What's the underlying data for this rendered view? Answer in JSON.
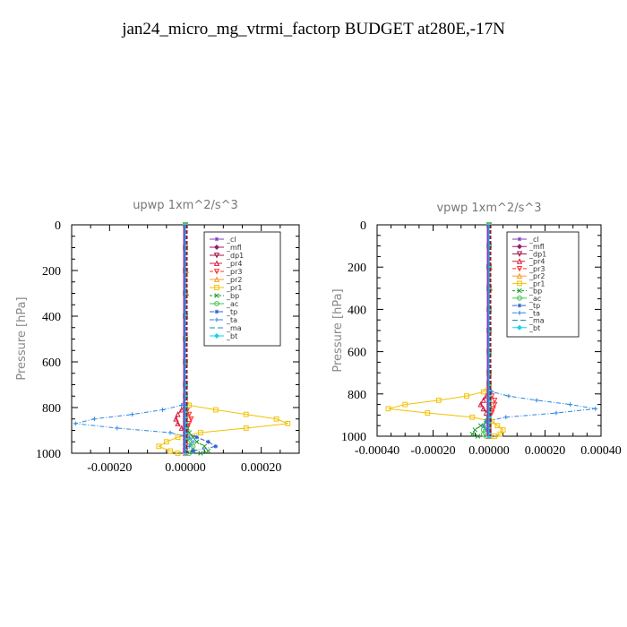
{
  "figure": {
    "title": "jan24_micro_mg_vtrmi_factorp  BUDGET at280E,-17N"
  },
  "chart_data": [
    {
      "type": "line",
      "title": "upwp   1xm^2/s^3",
      "xlabel": "",
      "ylabel": "Pressure [hPa]",
      "xlim": [
        -0.0003,
        0.0003
      ],
      "ylim": [
        1000,
        0
      ],
      "xticks": [
        -0.0002,
        0.0,
        0.0002
      ],
      "xtick_labels": [
        "-0.00020",
        "0.00000",
        "0.00020"
      ],
      "yticks": [
        0,
        200,
        400,
        600,
        800,
        1000
      ],
      "yticks_labels": [
        "0",
        "200",
        "400",
        "600",
        "800",
        "1000"
      ],
      "legend_position": "top-right",
      "pressure": [
        0,
        100,
        200,
        300,
        400,
        500,
        600,
        700,
        750,
        790,
        810,
        830,
        850,
        870,
        890,
        910,
        930,
        950,
        970,
        990,
        1000
      ],
      "series": [
        {
          "name": "_cl",
          "color": "#7f3fbf",
          "values": [
            0,
            0,
            0,
            0,
            0,
            0,
            0,
            0,
            0,
            0,
            0,
            0,
            0,
            0,
            0,
            0,
            0,
            0,
            0,
            0,
            0
          ]
        },
        {
          "name": "_mfl",
          "color": "#9b1b6b",
          "values": [
            0,
            0,
            0,
            0,
            0,
            0,
            0,
            0,
            0,
            0,
            0,
            0,
            0,
            0,
            0,
            0,
            0,
            0,
            0,
            0,
            0
          ]
        },
        {
          "name": "_dp1",
          "color": "#a0144a",
          "values": [
            0,
            0,
            0,
            0,
            0,
            0,
            0,
            0,
            0,
            0,
            0,
            0,
            0,
            0,
            0,
            0,
            0,
            0,
            0,
            0,
            0
          ]
        },
        {
          "name": "_pr4",
          "color": "#d81b3c",
          "values": [
            0,
            0,
            0,
            0,
            0,
            0,
            0,
            0,
            0,
            0,
            -1e-05,
            -2e-05,
            -2.5e-05,
            -2e-05,
            -1e-05,
            0,
            0,
            0,
            0,
            0,
            0
          ]
        },
        {
          "name": "_pr3",
          "color": "#ff3030",
          "values": [
            0,
            0,
            0,
            0,
            0,
            0,
            0,
            0,
            0,
            0,
            5e-06,
            1e-05,
            1.5e-05,
            1e-05,
            5e-06,
            0,
            0,
            0,
            0,
            0,
            0
          ]
        },
        {
          "name": "_pr2",
          "color": "#ff9a2f",
          "values": [
            0,
            0,
            2e-06,
            3e-06,
            0,
            0,
            0,
            0,
            0,
            0,
            0,
            0,
            0,
            0,
            0,
            0,
            0,
            0,
            0,
            0,
            0
          ]
        },
        {
          "name": "_pr1",
          "color": "#f2c200",
          "values": [
            0,
            0,
            0,
            0,
            0,
            0,
            0,
            0,
            0,
            1e-05,
            8e-05,
            0.00016,
            0.00024,
            0.00027,
            0.00016,
            4e-05,
            -2e-05,
            -5e-05,
            -7e-05,
            -4e-05,
            -2e-05
          ]
        },
        {
          "name": "_bp",
          "color": "#1a9e2a",
          "values": [
            0,
            0,
            0,
            0,
            0,
            0,
            0,
            0,
            0,
            0,
            0,
            0,
            0,
            0,
            5e-06,
            1e-05,
            2e-05,
            3e-05,
            5e-05,
            6e-05,
            4e-05
          ]
        },
        {
          "name": "_ac",
          "color": "#41c24a",
          "values": [
            0,
            0,
            0,
            0,
            0,
            0,
            0,
            0,
            0,
            0,
            0,
            0,
            0,
            0,
            0,
            0,
            5e-06,
            1e-05,
            2e-05,
            2e-05,
            1e-05
          ]
        },
        {
          "name": "_tp",
          "color": "#2f5fd0",
          "values": [
            0,
            0,
            0,
            0,
            0,
            0,
            0,
            0,
            0,
            0,
            0,
            0,
            0,
            0,
            0,
            0,
            3e-05,
            6e-05,
            8e-05,
            2e-05,
            0
          ]
        },
        {
          "name": "_ta",
          "color": "#2a86e0",
          "values": [
            0,
            0,
            0,
            0,
            0,
            0,
            0,
            0,
            0,
            -1e-05,
            -6e-05,
            -0.00014,
            -0.00024,
            -0.00029,
            -0.00018,
            -4e-05,
            1e-05,
            2e-05,
            1e-05,
            0,
            0
          ]
        },
        {
          "name": "_ma",
          "color": "#1f8fa8",
          "values": [
            0,
            0,
            0,
            0,
            0,
            0,
            0,
            0,
            0,
            0,
            0,
            0,
            0,
            0,
            0,
            0,
            0,
            0,
            0,
            0,
            0
          ]
        },
        {
          "name": "_bt",
          "color": "#12d3f0",
          "values": [
            0,
            0,
            0,
            0,
            0,
            0,
            0,
            0,
            0,
            0,
            0,
            0,
            0,
            0,
            0,
            0,
            0,
            0,
            0,
            0,
            0
          ]
        }
      ]
    },
    {
      "type": "line",
      "title": "vpwp   1xm^2/s^3",
      "xlabel": "",
      "ylabel": "Pressure [hPa]",
      "xlim": [
        -0.0004,
        0.0004
      ],
      "ylim": [
        1000,
        0
      ],
      "xticks": [
        -0.0004,
        -0.0002,
        0.0,
        0.0002,
        0.0004
      ],
      "xtick_labels": [
        "-0.00040",
        "-0.00020",
        "0.00000",
        "0.00020",
        "0.00040"
      ],
      "yticks": [
        0,
        200,
        400,
        600,
        800,
        1000
      ],
      "yticks_labels": [
        "0",
        "200",
        "400",
        "600",
        "800",
        "1000"
      ],
      "legend_position": "top-right",
      "pressure": [
        0,
        100,
        200,
        300,
        400,
        500,
        600,
        700,
        750,
        790,
        810,
        830,
        850,
        870,
        890,
        910,
        930,
        950,
        970,
        990,
        1000
      ],
      "series": [
        {
          "name": "_cl",
          "color": "#7f3fbf",
          "values": [
            0,
            0,
            0,
            0,
            0,
            0,
            0,
            0,
            0,
            0,
            0,
            0,
            0,
            0,
            0,
            0,
            0,
            0,
            0,
            0,
            0
          ]
        },
        {
          "name": "_mfl",
          "color": "#9b1b6b",
          "values": [
            0,
            0,
            0,
            0,
            0,
            0,
            0,
            0,
            0,
            0,
            0,
            0,
            0,
            0,
            0,
            0,
            0,
            0,
            0,
            0,
            0
          ]
        },
        {
          "name": "_dp1",
          "color": "#a0144a",
          "values": [
            0,
            0,
            0,
            0,
            0,
            0,
            0,
            0,
            0,
            0,
            0,
            0,
            0,
            0,
            0,
            0,
            0,
            0,
            0,
            0,
            0
          ]
        },
        {
          "name": "_pr4",
          "color": "#d81b3c",
          "values": [
            0,
            0,
            0,
            0,
            0,
            0,
            0,
            0,
            0,
            0,
            -1e-05,
            -2e-05,
            -3e-05,
            -2e-05,
            -1e-05,
            0,
            0,
            0,
            0,
            0,
            0
          ]
        },
        {
          "name": "_pr3",
          "color": "#ff3030",
          "values": [
            0,
            0,
            0,
            0,
            0,
            0,
            0,
            0,
            0,
            0,
            1e-05,
            2e-05,
            2e-05,
            1.5e-05,
            1e-05,
            0,
            0,
            0,
            0,
            0,
            0
          ]
        },
        {
          "name": "_pr2",
          "color": "#ff9a2f",
          "values": [
            0,
            0,
            3e-06,
            4e-06,
            0,
            0,
            0,
            0,
            0,
            0,
            0,
            0,
            0,
            0,
            0,
            0,
            0,
            0,
            0,
            0,
            0
          ]
        },
        {
          "name": "_pr1",
          "color": "#f2c200",
          "values": [
            0,
            0,
            0,
            0,
            0,
            0,
            0,
            0,
            0,
            -2e-05,
            -8e-05,
            -0.00018,
            -0.0003,
            -0.00036,
            -0.00022,
            -6e-05,
            1e-05,
            3e-05,
            5e-05,
            4e-05,
            2e-05
          ]
        },
        {
          "name": "_bp",
          "color": "#1a9e2a",
          "values": [
            0,
            0,
            0,
            0,
            0,
            0,
            0,
            0,
            0,
            0,
            0,
            0,
            0,
            0,
            0,
            -5e-06,
            -1e-05,
            -3e-05,
            -5e-05,
            -6e-05,
            -4e-05
          ]
        },
        {
          "name": "_ac",
          "color": "#41c24a",
          "values": [
            0,
            0,
            0,
            0,
            0,
            0,
            0,
            0,
            0,
            0,
            0,
            0,
            0,
            0,
            0,
            0,
            0,
            -1e-05,
            -2e-05,
            -2e-05,
            -1e-05
          ]
        },
        {
          "name": "_tp",
          "color": "#2f5fd0",
          "values": [
            0,
            0,
            -3e-06,
            0,
            0,
            0,
            0,
            0,
            0,
            0,
            0,
            0,
            0,
            0,
            0,
            0,
            0,
            0,
            0,
            0,
            0
          ]
        },
        {
          "name": "_ta",
          "color": "#2a86e0",
          "values": [
            0,
            0,
            0,
            0,
            0,
            0,
            0,
            0,
            0,
            1e-05,
            7e-05,
            0.00017,
            0.00029,
            0.00038,
            0.00024,
            6e-05,
            -1e-05,
            -2e-05,
            -1e-05,
            0,
            0
          ]
        },
        {
          "name": "_ma",
          "color": "#1f8fa8",
          "values": [
            0,
            0,
            0,
            0,
            0,
            0,
            0,
            0,
            0,
            0,
            0,
            0,
            0,
            0,
            0,
            0,
            0,
            0,
            0,
            0,
            0
          ]
        },
        {
          "name": "_bt",
          "color": "#12d3f0",
          "values": [
            0,
            0,
            0,
            0,
            0,
            0,
            0,
            0,
            0,
            0,
            0,
            0,
            0,
            0,
            0,
            0,
            0,
            0,
            0,
            0,
            0
          ]
        }
      ]
    }
  ]
}
